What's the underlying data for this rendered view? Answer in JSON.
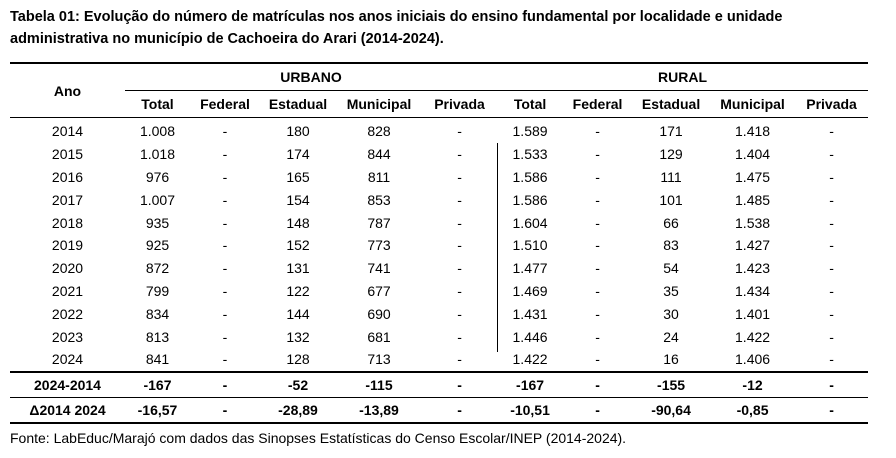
{
  "title": "Tabela 01: Evolução do número de matrículas nos anos iniciais do ensino fundamental por localidade e unidade administrativa no município de Cachoeira do Arari (2014-2024).",
  "table": {
    "year_header": "Ano",
    "groups": [
      "URBANO",
      "RURAL"
    ],
    "subheaders": [
      "Total",
      "Federal",
      "Estadual",
      "Municipal",
      "Privada",
      "Total",
      "Federal",
      "Estadual",
      "Municipal",
      "Privada"
    ],
    "rows": [
      [
        "2014",
        "1.008",
        "-",
        "180",
        "828",
        "-",
        "1.589",
        "-",
        "171",
        "1.418",
        "-"
      ],
      [
        "2015",
        "1.018",
        "-",
        "174",
        "844",
        "-",
        "1.533",
        "-",
        "129",
        "1.404",
        "-"
      ],
      [
        "2016",
        "976",
        "-",
        "165",
        "811",
        "-",
        "1.586",
        "-",
        "111",
        "1.475",
        "-"
      ],
      [
        "2017",
        "1.007",
        "-",
        "154",
        "853",
        "-",
        "1.586",
        "-",
        "101",
        "1.485",
        "-"
      ],
      [
        "2018",
        "935",
        "-",
        "148",
        "787",
        "-",
        "1.604",
        "-",
        "66",
        "1.538",
        "-"
      ],
      [
        "2019",
        "925",
        "-",
        "152",
        "773",
        "-",
        "1.510",
        "-",
        "83",
        "1.427",
        "-"
      ],
      [
        "2020",
        "872",
        "-",
        "131",
        "741",
        "-",
        "1.477",
        "-",
        "54",
        "1.423",
        "-"
      ],
      [
        "2021",
        "799",
        "-",
        "122",
        "677",
        "-",
        "1.469",
        "-",
        "35",
        "1.434",
        "-"
      ],
      [
        "2022",
        "834",
        "-",
        "144",
        "690",
        "-",
        "1.431",
        "-",
        "30",
        "1.401",
        "-"
      ],
      [
        "2023",
        "813",
        "-",
        "132",
        "681",
        "-",
        "1.446",
        "-",
        "24",
        "1.422",
        "-"
      ],
      [
        "2024",
        "841",
        "-",
        "128",
        "713",
        "-",
        "1.422",
        "-",
        "16",
        "1.406",
        "-"
      ]
    ],
    "summary_rows": [
      [
        "2024-2014",
        "-167",
        "-",
        "-52",
        "-115",
        "-",
        "-167",
        "-",
        "-155",
        "-12",
        "-"
      ],
      [
        "Δ2014 2024",
        "-16,57",
        "-",
        "-28,89",
        "-13,89",
        "-",
        "-10,51",
        "-",
        "-90,64",
        "-0,85",
        "-"
      ]
    ]
  },
  "source": "Fonte: LabEduc/Marajó com dados das Sinopses Estatísticas do Censo Escolar/INEP (2014-2024)."
}
